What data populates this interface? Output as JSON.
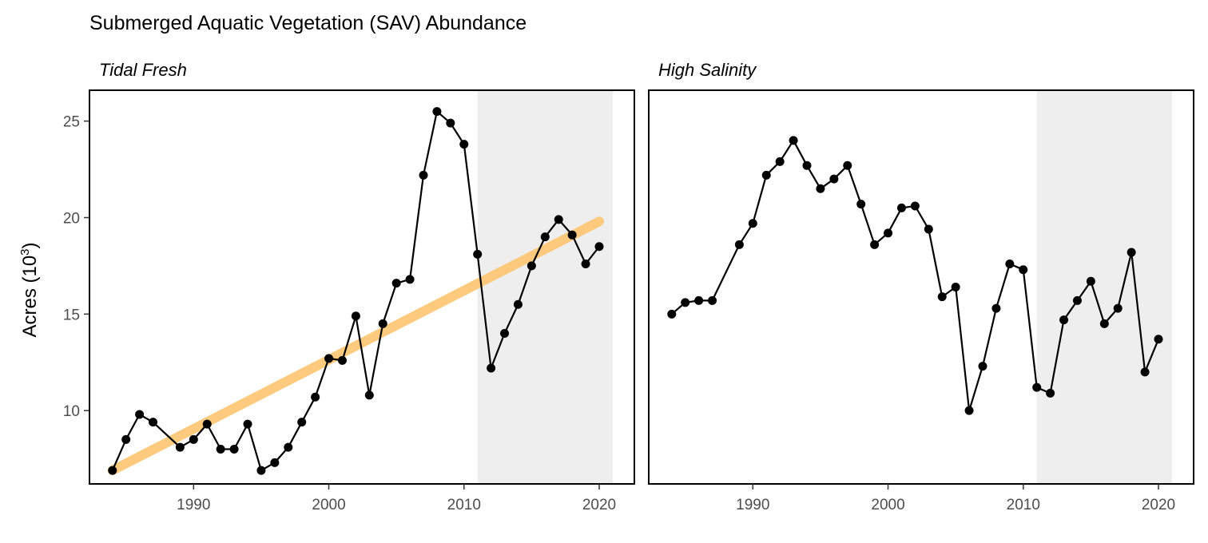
{
  "figure_title": "Submerged Aquatic Vegetation (SAV) Abundance",
  "colors": {
    "series": "#000000",
    "trend": "#fdc878",
    "shade": "#eeeeee",
    "panel_border": "#000000",
    "tick_label": "#4d4d4d"
  },
  "chart_data": [
    {
      "type": "line",
      "panel": "Tidal Fresh",
      "ylabel_base": "Acres (10",
      "ylabel_exp": "3",
      "ylabel_close": ")",
      "xlabel": "",
      "xlim": [
        1982.3,
        2022.6
      ],
      "ylim": [
        6.2,
        26.6
      ],
      "xticks": [
        1990,
        2000,
        2010,
        2020
      ],
      "yticks": [
        10,
        15,
        20,
        25
      ],
      "shaded_range": [
        2011,
        2021
      ],
      "series": [
        {
          "x": [
            1984,
            1985,
            1986,
            1987,
            1989,
            1990,
            1991,
            1992,
            1993,
            1994,
            1995,
            1996,
            1997,
            1998,
            1999,
            2000,
            2001,
            2002,
            2003,
            2004,
            2005,
            2006,
            2007,
            2008,
            2009,
            2010,
            2011,
            2012,
            2013,
            2014,
            2015,
            2016,
            2017,
            2018,
            2019,
            2020
          ],
          "y": [
            6.9,
            8.5,
            9.8,
            9.4,
            8.1,
            8.5,
            9.3,
            8.0,
            8.0,
            9.3,
            6.9,
            7.3,
            8.1,
            9.4,
            10.7,
            12.7,
            12.6,
            14.9,
            10.8,
            14.5,
            16.6,
            16.8,
            22.2,
            25.5,
            24.9,
            23.8,
            18.1,
            12.2,
            14.0,
            15.5,
            17.5,
            19.0,
            19.9,
            19.1,
            17.6,
            18.5
          ]
        }
      ],
      "trend": {
        "x": [
          1984,
          2020
        ],
        "y": [
          6.9,
          19.8
        ]
      }
    },
    {
      "type": "line",
      "panel": "High Salinity",
      "xlabel": "",
      "xlim": [
        1982.3,
        2022.6
      ],
      "ylim": [
        6.2,
        26.6
      ],
      "xticks": [
        1990,
        2000,
        2010,
        2020
      ],
      "yticks": [
        10,
        15,
        20,
        25
      ],
      "shaded_range": [
        2011,
        2021
      ],
      "series": [
        {
          "x": [
            1984,
            1985,
            1986,
            1987,
            1989,
            1990,
            1991,
            1992,
            1993,
            1994,
            1995,
            1996,
            1997,
            1998,
            1999,
            2000,
            2001,
            2002,
            2003,
            2004,
            2005,
            2006,
            2007,
            2008,
            2009,
            2010,
            2011,
            2012,
            2013,
            2014,
            2015,
            2016,
            2017,
            2018,
            2019,
            2020
          ],
          "y": [
            15.0,
            15.6,
            15.7,
            15.7,
            18.6,
            19.7,
            22.2,
            22.9,
            24.0,
            22.7,
            21.5,
            22.0,
            22.7,
            20.7,
            18.6,
            19.2,
            20.5,
            20.6,
            19.4,
            15.9,
            16.4,
            10.0,
            12.3,
            15.3,
            17.6,
            17.3,
            11.2,
            10.9,
            14.7,
            15.7,
            16.7,
            14.5,
            15.3,
            18.2,
            12.0,
            13.7
          ]
        }
      ]
    }
  ]
}
